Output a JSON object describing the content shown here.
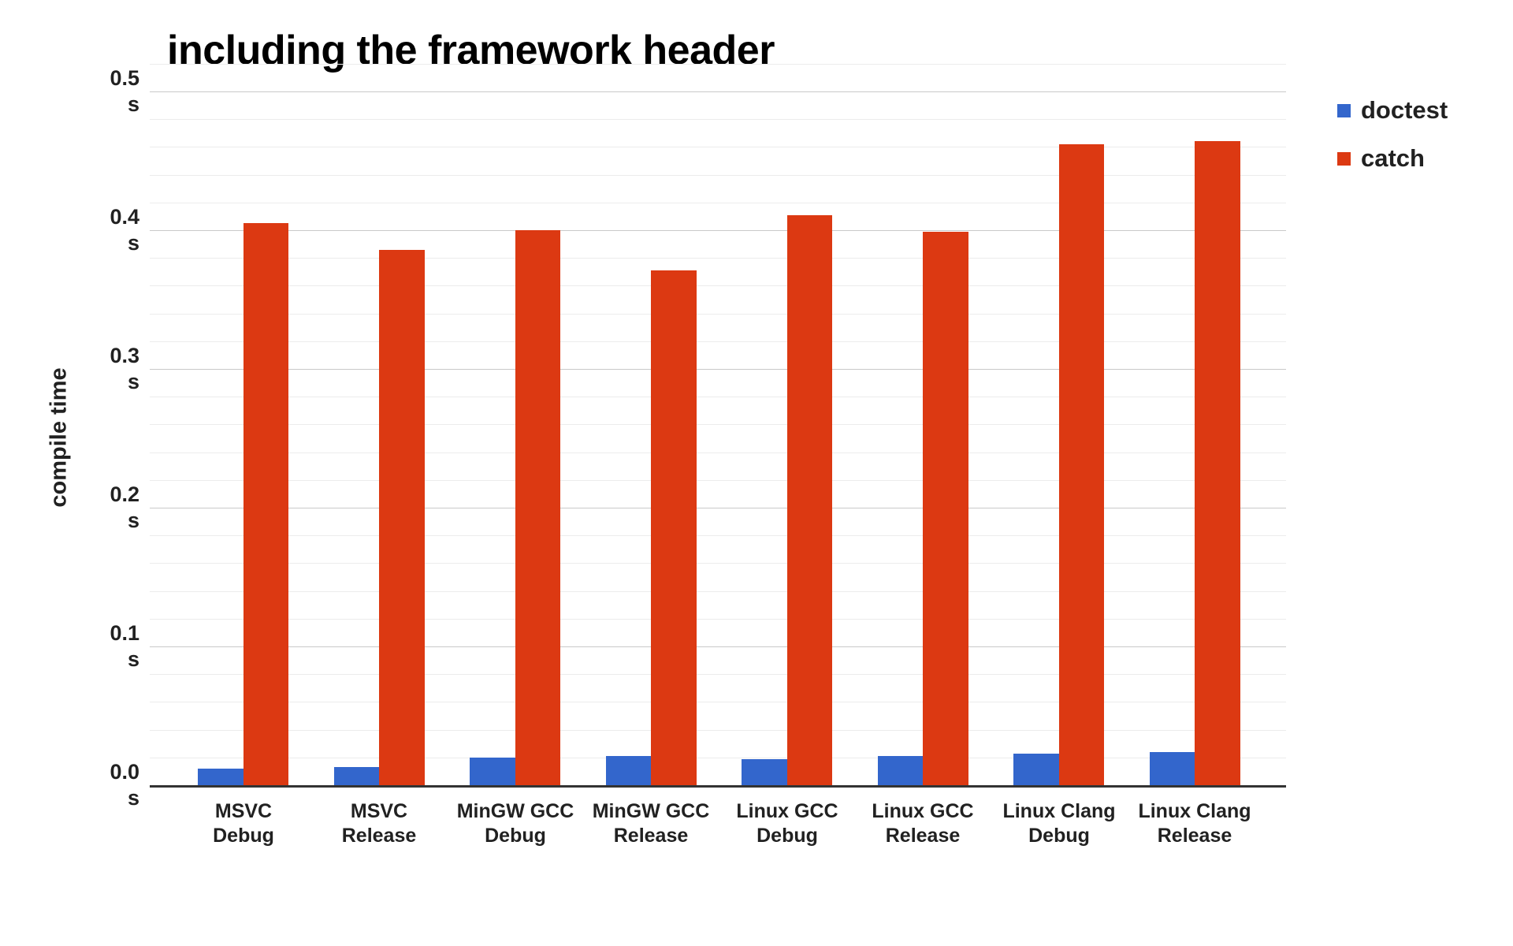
{
  "chart_data": {
    "type": "bar",
    "title": "including the framework header",
    "ylabel": "compile time",
    "unit": "s",
    "ylim": [
      0,
      0.52
    ],
    "ytick_step": 0.1,
    "minor_gridline_step": 0.02,
    "yticks": [
      "0.0",
      "0.1",
      "0.2",
      "0.3",
      "0.4",
      "0.5"
    ],
    "grid": true,
    "legend_position": "right",
    "categories": [
      "MSVC Debug",
      "MSVC Release",
      "MinGW GCC Debug",
      "MinGW GCC Release",
      "Linux GCC Debug",
      "Linux GCC Release",
      "Linux Clang Debug",
      "Linux Clang Release"
    ],
    "series": [
      {
        "name": "doctest",
        "color": "#3366cc",
        "values": [
          0.012,
          0.013,
          0.02,
          0.021,
          0.019,
          0.021,
          0.023,
          0.024
        ]
      },
      {
        "name": "catch",
        "color": "#dc3912",
        "values": [
          0.405,
          0.386,
          0.4,
          0.371,
          0.411,
          0.399,
          0.462,
          0.464
        ]
      }
    ],
    "colors": {
      "axis_line": "#333333",
      "major_grid": "#c9c9c9",
      "minor_grid": "#ececec",
      "text": "#212121",
      "title_text": "#000000"
    }
  }
}
